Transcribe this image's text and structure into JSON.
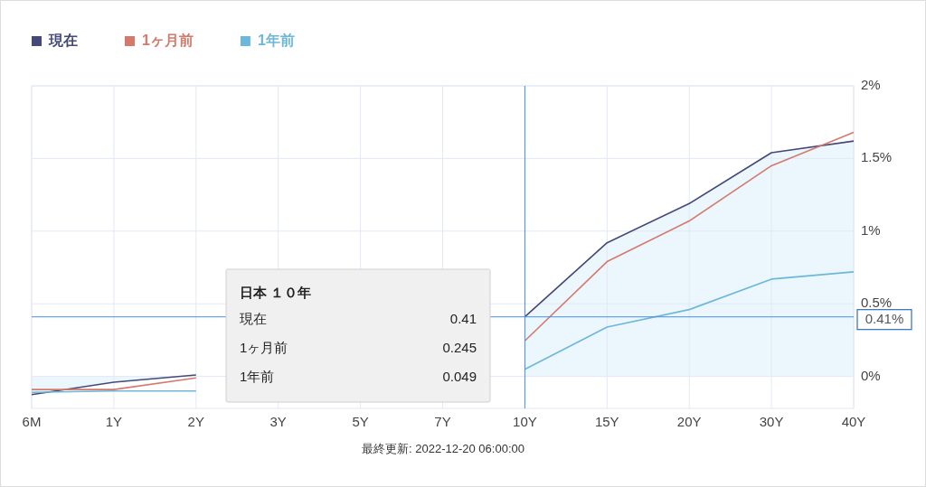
{
  "chart_data": {
    "type": "line",
    "categories": [
      "6M",
      "1Y",
      "2Y",
      "3Y",
      "5Y",
      "7Y",
      "10Y",
      "15Y",
      "20Y",
      "30Y",
      "40Y"
    ],
    "series": [
      {
        "name": "現在",
        "color": "#44497a",
        "type": "area",
        "values": [
          -0.125,
          -0.04,
          0.01,
          null,
          null,
          null,
          0.41,
          0.92,
          1.19,
          1.54,
          1.62
        ]
      },
      {
        "name": "1ヶ月前",
        "color": "#d47a6c",
        "values": [
          -0.09,
          -0.09,
          -0.01,
          null,
          null,
          null,
          0.245,
          0.79,
          1.07,
          1.45,
          1.68
        ]
      },
      {
        "name": "1年前",
        "color": "#6db7da",
        "values": [
          -0.11,
          -0.1,
          -0.1,
          null,
          null,
          null,
          0.049,
          0.34,
          0.46,
          0.67,
          0.72
        ]
      }
    ],
    "ylim": [
      -0.22,
      2
    ],
    "yticks": [
      {
        "value": 0,
        "label": "0%"
      },
      {
        "value": 0.5,
        "label": "0.5%"
      },
      {
        "value": 1,
        "label": "1%"
      },
      {
        "value": 1.5,
        "label": "1.5%"
      },
      {
        "value": 2,
        "label": "2%"
      }
    ],
    "grid": true,
    "legend": "top left",
    "marker": "none",
    "line_style": "solid",
    "ref_lines": [
      {
        "axis": "x",
        "value": "10Y",
        "color": "#4a90d9"
      },
      {
        "axis": "y",
        "value": 0.41,
        "label": "0.41%",
        "color": "#4a90d9"
      }
    ],
    "annotations": [
      "日本 １０年",
      "0.41",
      "0.245",
      "0.049",
      "最終更新: 2022-12-20 06:00:00"
    ]
  }
}
